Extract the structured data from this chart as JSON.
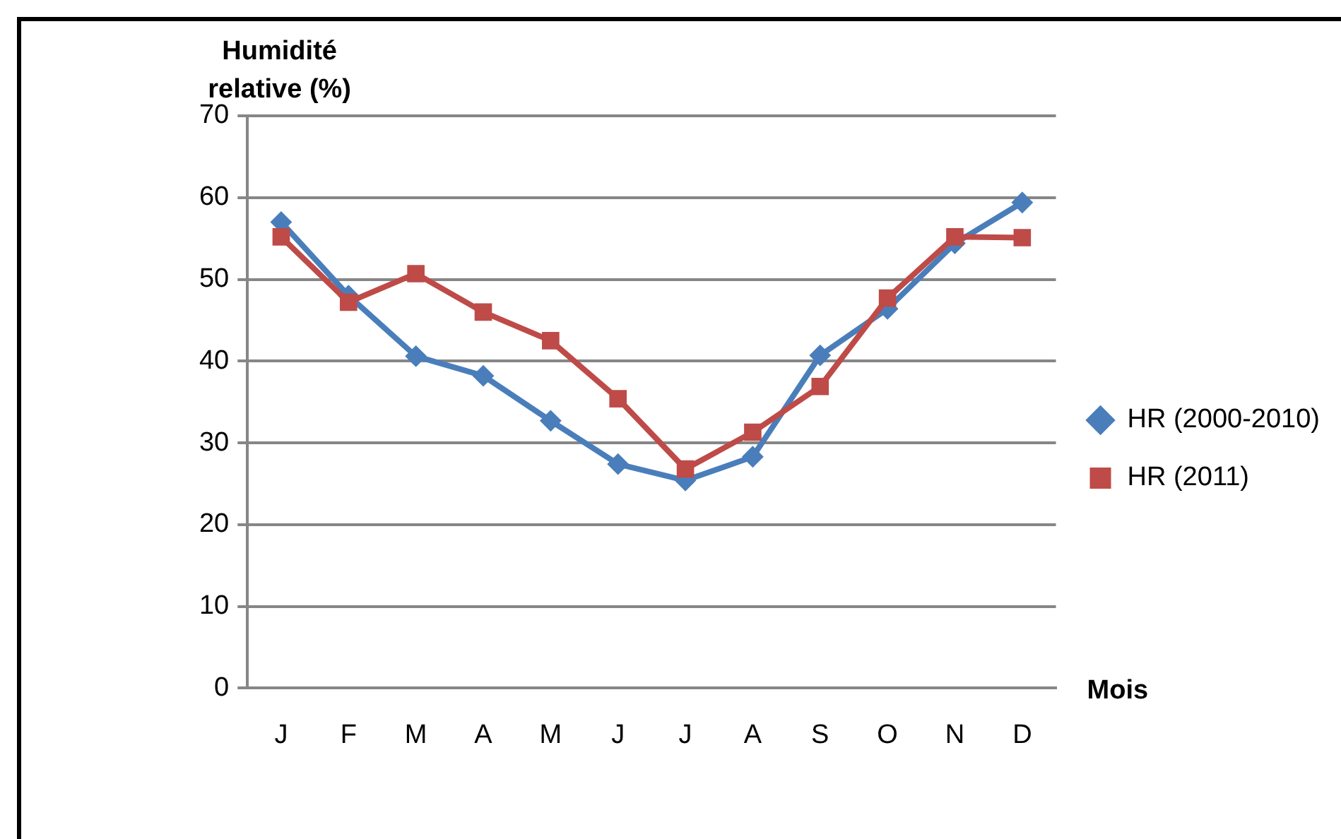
{
  "chart_data": {
    "type": "line",
    "xlabel": "Mois",
    "ylabel": "Humidité relative (%)",
    "categories": [
      "J",
      "F",
      "M",
      "A",
      "M",
      "J",
      "J",
      "A",
      "S",
      "O",
      "N",
      "D"
    ],
    "series": [
      {
        "name": "HR (2000-2010)",
        "color": "#4a7ebb",
        "marker": "diamond",
        "values": [
          57,
          48,
          40.6,
          38.2,
          32.7,
          27.4,
          25.4,
          28.3,
          40.7,
          46.4,
          54.4,
          59.4
        ]
      },
      {
        "name": "HR (2011)",
        "color": "#be4b48",
        "marker": "square",
        "values": [
          55.2,
          47.2,
          50.7,
          46,
          42.5,
          35.4,
          26.8,
          31.3,
          36.9,
          47.7,
          55.2,
          55.1
        ]
      }
    ],
    "ylim": [
      0,
      70
    ],
    "yticks": [
      0,
      10,
      20,
      30,
      40,
      50,
      60,
      70
    ],
    "grid": "y",
    "legend": "right"
  }
}
